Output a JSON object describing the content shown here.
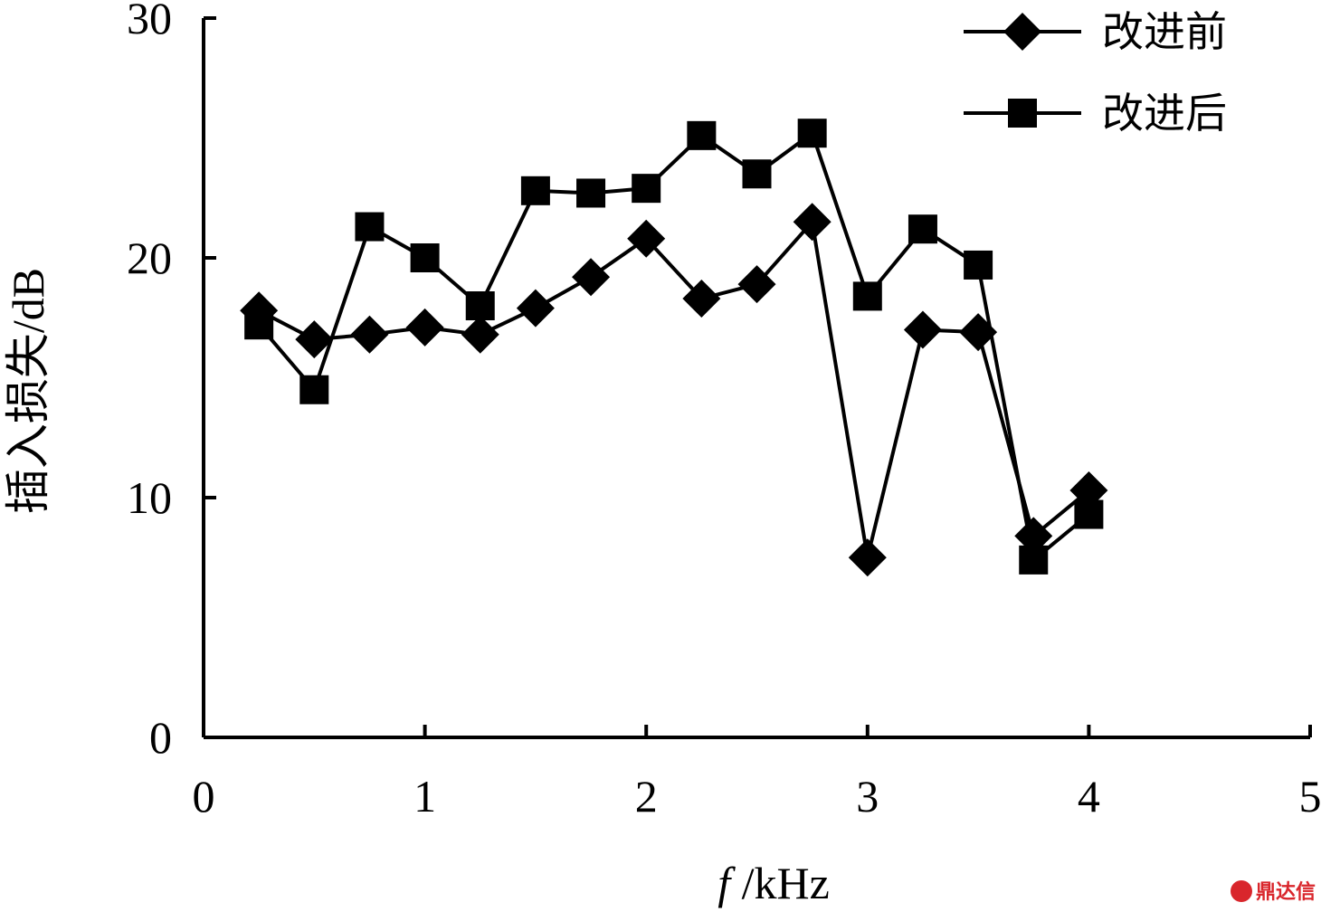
{
  "chart_data": {
    "type": "line",
    "title": "",
    "xlabel_italic": "f",
    "xlabel_rest": " /kHz",
    "ylabel": "插入损失/dB",
    "xlim": [
      0,
      5
    ],
    "ylim": [
      0,
      30
    ],
    "xticks": [
      0,
      1,
      2,
      3,
      4,
      5
    ],
    "yticks": [
      0,
      10,
      20,
      30
    ],
    "grid": false,
    "legend_position": "top-right",
    "series": [
      {
        "name": "改进前",
        "marker": "diamond",
        "x": [
          0.25,
          0.5,
          0.75,
          1.0,
          1.25,
          1.5,
          1.75,
          2.0,
          2.25,
          2.5,
          2.75,
          3.0,
          3.25,
          3.5,
          3.75,
          4.0
        ],
        "values": [
          17.8,
          16.6,
          16.8,
          17.1,
          16.8,
          17.9,
          19.2,
          20.8,
          18.3,
          18.9,
          21.5,
          7.5,
          17.0,
          16.9,
          8.4,
          10.3
        ]
      },
      {
        "name": "改进后",
        "marker": "square",
        "x": [
          0.25,
          0.5,
          0.75,
          1.0,
          1.25,
          1.5,
          1.75,
          2.0,
          2.25,
          2.5,
          2.75,
          3.0,
          3.25,
          3.5,
          3.75,
          4.0
        ],
        "values": [
          17.2,
          14.5,
          21.3,
          20.0,
          18.0,
          22.8,
          22.7,
          22.9,
          25.1,
          23.5,
          25.2,
          18.4,
          21.2,
          19.7,
          7.4,
          9.3
        ]
      }
    ]
  },
  "watermark": "鼎达信"
}
